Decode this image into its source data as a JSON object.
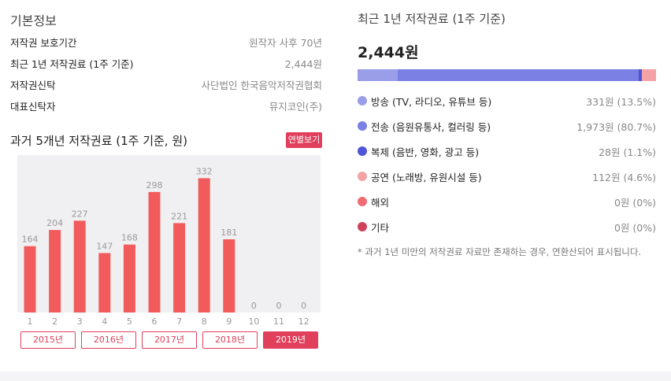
{
  "basic": {
    "title": "기본정보",
    "rows": [
      {
        "label": "저작권 보호기간",
        "value": "원작자 사후 70년"
      },
      {
        "label": "최근 1년 저작권료 (1주 기준)",
        "value": "2,444원"
      },
      {
        "label": "저작권신탁",
        "value": "사단법인 한국음악저작권협회"
      },
      {
        "label": "대표신탁자",
        "value": "뮤지코인(주)"
      }
    ]
  },
  "history": {
    "title": "과거 5개년 저작권료 (1주 기준, 원)",
    "yearly_button": "연별보기",
    "years": [
      "2015년",
      "2016년",
      "2017년",
      "2018년",
      "2019년"
    ],
    "active_year": "2019년"
  },
  "chart_data": {
    "type": "bar",
    "categories": [
      "1",
      "2",
      "3",
      "4",
      "5",
      "6",
      "7",
      "8",
      "9",
      "10",
      "11",
      "12"
    ],
    "values": [
      164,
      204,
      227,
      147,
      168,
      298,
      221,
      332,
      181,
      0,
      0,
      0
    ],
    "ylim": [
      0,
      360
    ],
    "bar_color": "#f25b5b",
    "grid": false
  },
  "recent": {
    "title": "최근 1년 저작권료 (1주 기준)",
    "total": "2,444원",
    "breakdown": [
      {
        "name": "방송 (TV, 라디오, 유튜브 등)",
        "amount": "331원 (13.5%)",
        "percent": 13.5,
        "color": "#9a9ee8"
      },
      {
        "name": "전송 (음원유통사, 컬러링 등)",
        "amount": "1,973원 (80.7%)",
        "percent": 80.7,
        "color": "#7b80e4"
      },
      {
        "name": "복제 (음반, 영화, 광고 등)",
        "amount": "28원 (1.1%)",
        "percent": 1.1,
        "color": "#4f55d6"
      },
      {
        "name": "공연 (노래방, 유원시설 등)",
        "amount": "112원 (4.6%)",
        "percent": 4.6,
        "color": "#f4a2a6"
      },
      {
        "name": "해외",
        "amount": "0원 (0%)",
        "percent": 0,
        "color": "#f06b74"
      },
      {
        "name": "기타",
        "amount": "0원 (0%)",
        "percent": 0,
        "color": "#d0415a"
      }
    ],
    "footnote": "* 과거 1년 미만의 저작권료 자료만 존재하는 경우, 연환산되어 표시됩니다."
  }
}
